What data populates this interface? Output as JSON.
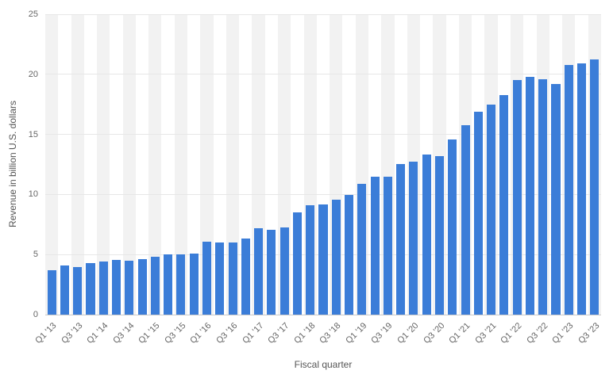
{
  "page": {
    "background": "#ffffff"
  },
  "chart_data": {
    "type": "bar",
    "title": "",
    "xlabel": "Fiscal quarter",
    "ylabel": "Revenue in billion U.S. dollars",
    "ylim": [
      0,
      25
    ],
    "yticks": [
      0,
      5,
      10,
      15,
      20,
      25
    ],
    "grid": true,
    "legend": "none",
    "bar_color": "#3b7dd8",
    "stripe_color": "#f2f2f2",
    "gridline_color": "#e7e7e7",
    "tick_text_color": "#666666",
    "categories": [
      "Q1 '13",
      "Q2 '13",
      "Q3 '13",
      "Q4 '13",
      "Q1 '14",
      "Q2 '14",
      "Q3 '14",
      "Q4 '14",
      "Q1 '15",
      "Q2 '15",
      "Q3 '15",
      "Q4 '15",
      "Q1 '16",
      "Q2 '16",
      "Q3 '16",
      "Q4 '16",
      "Q1 '17",
      "Q2 '17",
      "Q3 '17",
      "Q4 '17",
      "Q1 '18",
      "Q2 '18",
      "Q3 '18",
      "Q4 '18",
      "Q1 '19",
      "Q2 '19",
      "Q3 '19",
      "Q4 '19",
      "Q1 '20",
      "Q2 '20",
      "Q3 '20",
      "Q4 '20",
      "Q1 '21",
      "Q2 '21",
      "Q3 '21",
      "Q4 '21",
      "Q1 '22",
      "Q2 '22",
      "Q3 '22",
      "Q4 '22",
      "Q1 '23",
      "Q2 '23",
      "Q3 '23"
    ],
    "values": [
      3.69,
      4.11,
      3.99,
      4.26,
      4.4,
      4.57,
      4.49,
      4.61,
      4.8,
      5.0,
      5.03,
      5.09,
      6.06,
      5.99,
      5.98,
      6.33,
      7.17,
      7.04,
      7.27,
      8.5,
      9.13,
      9.19,
      9.55,
      9.98,
      10.88,
      11.45,
      11.46,
      12.51,
      12.72,
      13.35,
      13.16,
      14.55,
      15.76,
      16.9,
      17.49,
      18.28,
      19.52,
      19.82,
      19.6,
      19.19,
      20.77,
      20.91,
      21.21
    ],
    "xtick_label_every": 2,
    "xticklabels_shown": [
      "Q1 '13",
      "Q3 '13",
      "Q1 '14",
      "Q3 '14",
      "Q1 '15",
      "Q3 '15",
      "Q1 '16",
      "Q3 '16",
      "Q1 '17",
      "Q3 '17",
      "Q1 '18",
      "Q3 '18",
      "Q1 '19",
      "Q3 '19",
      "Q1 '20",
      "Q3 '20",
      "Q1 '21",
      "Q3 '21",
      "Q1 '22",
      "Q3 '22",
      "Q1 '23",
      "Q3 '23"
    ]
  }
}
